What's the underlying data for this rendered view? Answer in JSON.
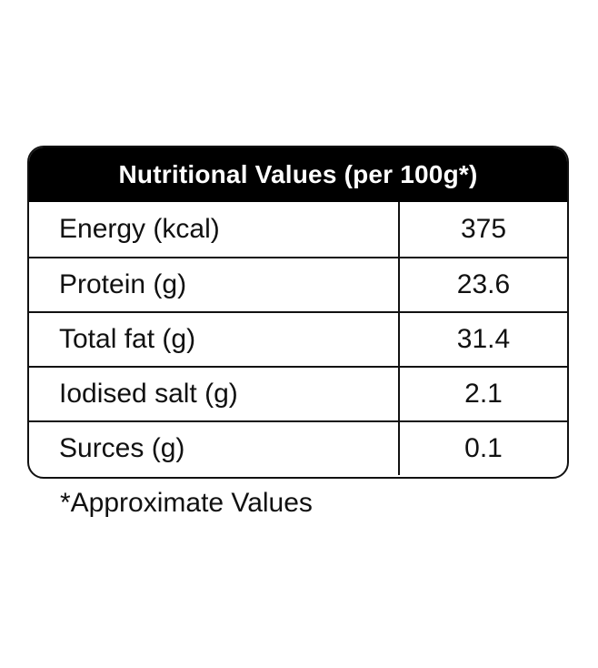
{
  "table": {
    "title": "Nutritional Values (per 100g*)",
    "rows": [
      {
        "name": "Energy (kcal)",
        "value": "375"
      },
      {
        "name": "Protein (g)",
        "value": "23.6"
      },
      {
        "name": "Total fat (g)",
        "value": "31.4"
      },
      {
        "name": "Iodised salt (g)",
        "value": "2.1"
      },
      {
        "name": "Surces (g)",
        "value": "0.1"
      }
    ]
  },
  "footnote": "*Approximate Values"
}
